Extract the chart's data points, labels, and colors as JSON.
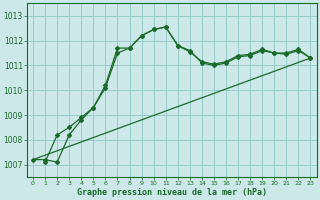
{
  "xlabel": "Graphe pression niveau de la mer (hPa)",
  "bg_color": "#cce8e8",
  "grid_color": "#99cccc",
  "line_color": "#1a6b2a",
  "xlim": [
    -0.5,
    23.5
  ],
  "ylim": [
    1006.5,
    1013.5
  ],
  "yticks": [
    1007,
    1008,
    1009,
    1010,
    1011,
    1012,
    1013
  ],
  "xticks": [
    0,
    1,
    2,
    3,
    4,
    5,
    6,
    7,
    8,
    9,
    10,
    11,
    12,
    13,
    14,
    15,
    16,
    17,
    18,
    19,
    20,
    21,
    22,
    23
  ],
  "series1_x": [
    0,
    1,
    2,
    3,
    4,
    5,
    6,
    7,
    8,
    9,
    10,
    11,
    12,
    13,
    14,
    15,
    16,
    17,
    18,
    19,
    20,
    21,
    22,
    23
  ],
  "series1_y": [
    1007.2,
    1007.2,
    1007.1,
    1008.2,
    1008.8,
    1009.3,
    1010.1,
    1011.5,
    1011.7,
    1012.2,
    1012.45,
    1012.55,
    1011.8,
    1011.6,
    1011.1,
    1011.0,
    1011.1,
    1011.35,
    1011.4,
    1011.6,
    1011.5,
    1011.45,
    1011.6,
    1011.3
  ],
  "series2_x": [
    1,
    2,
    3,
    4,
    5,
    6,
    7,
    8,
    9,
    10,
    11,
    12,
    13,
    14,
    15,
    16,
    17,
    18,
    19,
    20,
    21,
    22,
    23
  ],
  "series2_y": [
    1007.1,
    1008.2,
    1008.5,
    1008.9,
    1009.3,
    1010.2,
    1011.7,
    1011.7,
    1012.2,
    1012.45,
    1012.55,
    1011.8,
    1011.55,
    1011.15,
    1011.05,
    1011.15,
    1011.4,
    1011.45,
    1011.65,
    1011.5,
    1011.5,
    1011.65,
    1011.3
  ],
  "series3_x": [
    0,
    23
  ],
  "series3_y": [
    1007.2,
    1011.3
  ],
  "ytick_labels": [
    "1007",
    "1008",
    "1009",
    "1010",
    "1011",
    "1012",
    "1013"
  ]
}
